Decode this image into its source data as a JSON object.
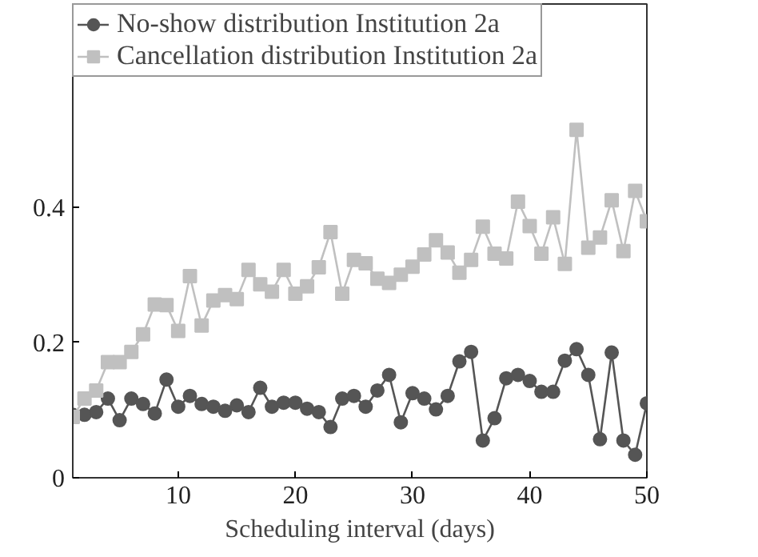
{
  "chart_data": {
    "type": "line",
    "xlabel": "Scheduling interval (days)",
    "x": [
      1,
      2,
      3,
      4,
      5,
      6,
      7,
      8,
      9,
      10,
      11,
      12,
      13,
      14,
      15,
      16,
      17,
      18,
      19,
      20,
      21,
      22,
      23,
      24,
      25,
      26,
      27,
      28,
      29,
      30,
      31,
      32,
      33,
      34,
      35,
      36,
      37,
      38,
      39,
      40,
      41,
      42,
      43,
      44,
      45,
      46,
      47,
      48,
      49,
      50
    ],
    "series": [
      {
        "name": "No-show distribution Institution 2a",
        "color": "#555555",
        "marker": "circle",
        "values": [
          0.093,
          0.093,
          0.097,
          0.117,
          0.085,
          0.117,
          0.109,
          0.095,
          0.145,
          0.105,
          0.121,
          0.109,
          0.105,
          0.099,
          0.107,
          0.097,
          0.133,
          0.105,
          0.111,
          0.111,
          0.102,
          0.097,
          0.075,
          0.117,
          0.121,
          0.105,
          0.129,
          0.152,
          0.082,
          0.125,
          0.117,
          0.101,
          0.121,
          0.172,
          0.186,
          0.055,
          0.088,
          0.147,
          0.152,
          0.143,
          0.127,
          0.127,
          0.173,
          0.19,
          0.152,
          0.057,
          0.185,
          0.055,
          0.034,
          0.11
        ]
      },
      {
        "name": "Cancellation distribution Institution 2a",
        "color": "#c0c0c0",
        "marker": "square",
        "values": [
          0.09,
          0.117,
          0.129,
          0.171,
          0.171,
          0.186,
          0.212,
          0.256,
          0.255,
          0.217,
          0.298,
          0.225,
          0.262,
          0.27,
          0.264,
          0.307,
          0.286,
          0.275,
          0.307,
          0.272,
          0.283,
          0.311,
          0.363,
          0.272,
          0.322,
          0.317,
          0.294,
          0.288,
          0.3,
          0.312,
          0.33,
          0.351,
          0.333,
          0.303,
          0.322,
          0.371,
          0.331,
          0.324,
          0.408,
          0.372,
          0.331,
          0.385,
          0.316,
          0.514,
          0.34,
          0.355,
          0.41,
          0.335,
          0.424,
          0.379
        ]
      }
    ],
    "xlim": [
      1,
      50
    ],
    "ylim": [
      0,
      0.7
    ],
    "xticks": [
      10,
      20,
      30,
      40,
      50
    ],
    "yticks": [
      0,
      0.2,
      0.4
    ],
    "grid": false,
    "legend": "top left",
    "line_style": "solid"
  }
}
